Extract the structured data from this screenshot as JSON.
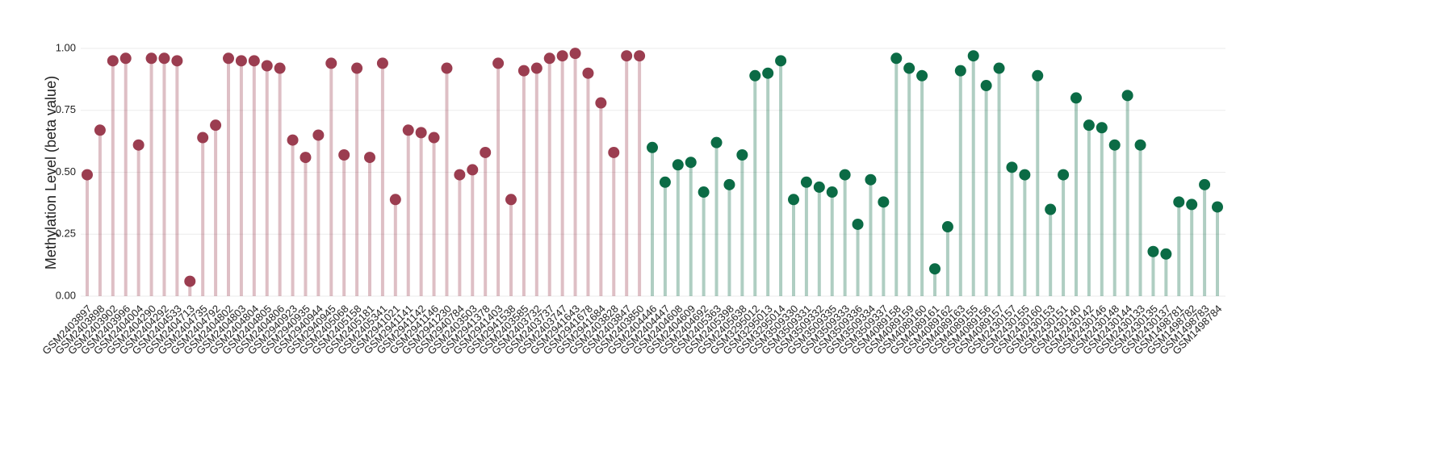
{
  "chart_data": {
    "type": "lollipop",
    "ylabel": "Methylation Level (beta value)",
    "ylim": [
      0,
      1
    ],
    "yticks": [
      {
        "value": 0,
        "label": "0.00"
      },
      {
        "value": 0.25,
        "label": "0.25"
      },
      {
        "value": 0.5,
        "label": "0.50"
      },
      {
        "value": 0.75,
        "label": "0.75"
      },
      {
        "value": 1,
        "label": "1.00"
      }
    ],
    "grid": true,
    "categories": [
      "GSM2403897",
      "GSM2403898",
      "GSM2403902",
      "GSM2403996",
      "GSM2404004",
      "GSM2404290",
      "GSM2404292",
      "GSM2404533",
      "GSM2404713",
      "GSM2404735",
      "GSM2404792",
      "GSM2404802",
      "GSM2404803",
      "GSM2404804",
      "GSM2404805",
      "GSM2404806",
      "GSM2940923",
      "GSM2940935",
      "GSM2940944",
      "GSM2940945",
      "GSM2405068",
      "GSM2405158",
      "GSM2405181",
      "GSM2405341",
      "GSM2941021",
      "GSM2941141",
      "GSM2941142",
      "GSM2941146",
      "GSM2941230",
      "GSM2940784",
      "GSM2403503",
      "GSM2941378",
      "GSM2941403",
      "GSM2941538",
      "GSM2403585",
      "GSM2403732",
      "GSM2403737",
      "GSM2403747",
      "GSM2941643",
      "GSM2941678",
      "GSM2941684",
      "GSM2403828",
      "GSM2403847",
      "GSM2403850",
      "GSM2404446",
      "GSM2404447",
      "GSM2404608",
      "GSM2404609",
      "GSM2404692",
      "GSM2405363",
      "GSM2405398",
      "GSM2405638",
      "GSM3295012",
      "GSM3295013",
      "GSM3295014",
      "GSM3509330",
      "GSM3509331",
      "GSM3509332",
      "GSM3509335",
      "GSM3509333",
      "GSM3509336",
      "GSM3509334",
      "GSM3509337",
      "GSM4089158",
      "GSM4089159",
      "GSM4089160",
      "GSM4089161",
      "GSM4089162",
      "GSM4089163",
      "GSM4089155",
      "GSM4089156",
      "GSM4089157",
      "GSM2430157",
      "GSM2430155",
      "GSM2430160",
      "GSM2430153",
      "GSM2430151",
      "GSM2430140",
      "GSM2430142",
      "GSM2430146",
      "GSM2430148",
      "GSM2430144",
      "GSM2430133",
      "GSM2430135",
      "GSM2430137",
      "GSM1498781",
      "GSM1498782",
      "GSM1498783",
      "GSM1498784"
    ],
    "values": [
      0.49,
      0.67,
      0.95,
      0.96,
      0.61,
      0.96,
      0.96,
      0.95,
      0.06,
      0.64,
      0.69,
      0.96,
      0.95,
      0.95,
      0.93,
      0.92,
      0.63,
      0.56,
      0.65,
      0.94,
      0.57,
      0.92,
      0.56,
      0.94,
      0.39,
      0.67,
      0.66,
      0.64,
      0.92,
      0.49,
      0.51,
      0.58,
      0.94,
      0.39,
      0.91,
      0.92,
      0.96,
      0.97,
      0.98,
      0.9,
      0.78,
      0.58,
      0.97,
      0.97,
      0.6,
      0.46,
      0.53,
      0.54,
      0.42,
      0.62,
      0.45,
      0.57,
      0.89,
      0.9,
      0.95,
      0.39,
      0.46,
      0.44,
      0.42,
      0.49,
      0.29,
      0.47,
      0.38,
      0.96,
      0.92,
      0.89,
      0.11,
      0.28,
      0.91,
      0.97,
      0.85,
      0.92,
      0.52,
      0.49,
      0.89,
      0.35,
      0.49,
      0.8,
      0.69,
      0.68,
      0.61,
      0.81,
      0.61,
      0.18,
      0.17,
      0.38,
      0.37,
      0.45,
      0.36
    ],
    "colors": [
      "#9b3d50",
      "#9b3d50",
      "#9b3d50",
      "#9b3d50",
      "#9b3d50",
      "#9b3d50",
      "#9b3d50",
      "#9b3d50",
      "#9b3d50",
      "#9b3d50",
      "#9b3d50",
      "#9b3d50",
      "#9b3d50",
      "#9b3d50",
      "#9b3d50",
      "#9b3d50",
      "#9b3d50",
      "#9b3d50",
      "#9b3d50",
      "#9b3d50",
      "#9b3d50",
      "#9b3d50",
      "#9b3d50",
      "#9b3d50",
      "#9b3d50",
      "#9b3d50",
      "#9b3d50",
      "#9b3d50",
      "#9b3d50",
      "#9b3d50",
      "#9b3d50",
      "#9b3d50",
      "#9b3d50",
      "#9b3d50",
      "#9b3d50",
      "#9b3d50",
      "#9b3d50",
      "#9b3d50",
      "#9b3d50",
      "#9b3d50",
      "#9b3d50",
      "#9b3d50",
      "#9b3d50",
      "#9b3d50",
      "#0b6b45",
      "#0b6b45",
      "#0b6b45",
      "#0b6b45",
      "#0b6b45",
      "#0b6b45",
      "#0b6b45",
      "#0b6b45",
      "#0b6b45",
      "#0b6b45",
      "#0b6b45",
      "#0b6b45",
      "#0b6b45",
      "#0b6b45",
      "#0b6b45",
      "#0b6b45",
      "#0b6b45",
      "#0b6b45",
      "#0b6b45",
      "#0b6b45",
      "#0b6b45",
      "#0b6b45",
      "#0b6b45",
      "#0b6b45",
      "#0b6b45",
      "#0b6b45",
      "#0b6b45",
      "#0b6b45",
      "#0b6b45",
      "#0b6b45",
      "#0b6b45",
      "#0b6b45",
      "#0b6b45",
      "#0b6b45",
      "#0b6b45",
      "#0b6b45",
      "#0b6b45",
      "#0b6b45",
      "#0b6b45",
      "#0b6b45",
      "#0b6b45",
      "#0b6b45",
      "#0b6b45",
      "#0b6b45",
      "#0b6b45"
    ]
  }
}
